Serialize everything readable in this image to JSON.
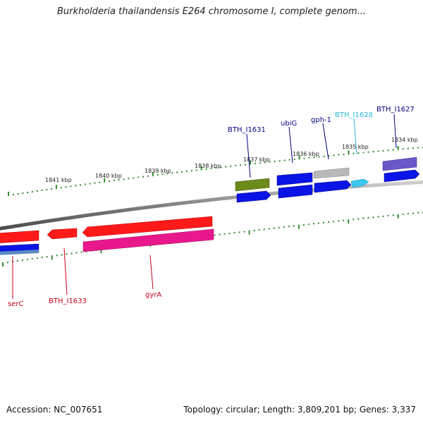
{
  "title": "Burkholderia thailandensis E264 chromosome I, complete genom...",
  "footer": {
    "accession": "Accession: NC_007651",
    "stats": "Topology: circular; Length: 3,809,201 bp; Genes: 3,337"
  },
  "scale_labels": [
    "1841 kbp",
    "1840 kbp",
    "1839 kbp",
    "1838 kbp",
    "1837 kbp",
    "1836 kbp",
    "1835 kbp",
    "1834 kbp"
  ],
  "colors": {
    "backbone": "#7d7d7d",
    "tick": "#2e8b2e",
    "reverse_label": "#c8001e",
    "forward_label": "#000080",
    "highlight_label": "#29b6d8",
    "red_gene": "#ff1a1a",
    "magenta_gene": "#e8188c",
    "blue_gene": "#0a14e6",
    "olive_gene": "#6b8a1a",
    "gray_gene": "#b8b8b8",
    "cyan_gene": "#3cc8f0",
    "purple_gene": "#6a58c8"
  },
  "gene_labels": {
    "reverse": [
      "serC",
      "BTH_I1633",
      "gyrA"
    ],
    "forward": [
      "BTH_I1631",
      "ubiG",
      "gph-1",
      "BTH_I1628",
      "BTH_I1627"
    ]
  }
}
